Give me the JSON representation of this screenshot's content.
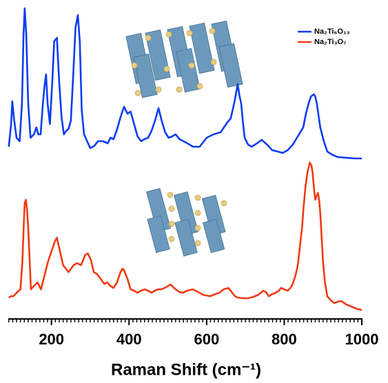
{
  "chart_data": {
    "type": "line",
    "x_label": "Raman Shift (cm⁻¹)",
    "xlim": [
      89,
      1000
    ],
    "ylim": [
      0,
      450
    ],
    "xticks": [
      200,
      400,
      600,
      800,
      1000
    ],
    "xminorticks": [
      90,
      100,
      110,
      120,
      130,
      140,
      150,
      160,
      170,
      180,
      190,
      200,
      210,
      220,
      230,
      240,
      250,
      260,
      270,
      280,
      290,
      300,
      310,
      320,
      330,
      340,
      350,
      360,
      370,
      380,
      390,
      400,
      410,
      420,
      430,
      440,
      450,
      460,
      470,
      480,
      490,
      500,
      510,
      520,
      530,
      540,
      550,
      560,
      570,
      580,
      590,
      600,
      610,
      620,
      630,
      640,
      650,
      660,
      670,
      680,
      690,
      700,
      710,
      720,
      730,
      740,
      750,
      760,
      770,
      780,
      790,
      800,
      810,
      820,
      830,
      840,
      850,
      860,
      870,
      880,
      890,
      900,
      910,
      920,
      930,
      940,
      950,
      960,
      970,
      980,
      990,
      1000
    ],
    "legend": "upper right",
    "series": [
      {
        "name": "Na₂Ti₆O₁₃",
        "color": "#0b3df0",
        "x": [
          90,
          96,
          99,
          104,
          110,
          118,
          124,
          128,
          131,
          135,
          140,
          146,
          155,
          161,
          166,
          172,
          178,
          182,
          186,
          190,
          196,
          202,
          207,
          214,
          220,
          226,
          232,
          238,
          244,
          250,
          256,
          262,
          268,
          273,
          278,
          284,
          292,
          300,
          310,
          320,
          333,
          345,
          352,
          360,
          369,
          378,
          387,
          396,
          404,
          413,
          422,
          431,
          440,
          449,
          458,
          467,
          476,
          484,
          493,
          502,
          511,
          520,
          530,
          547,
          565,
          582,
          600,
          618,
          636,
          653,
          662,
          671,
          676,
          680,
          685,
          689,
          694,
          698,
          707,
          716,
          730,
          742,
          756,
          769,
          783,
          796,
          809,
          822,
          835,
          849,
          856,
          863,
          869,
          876,
          880,
          884,
          889,
          893,
          902,
          911,
          925,
          938,
          960,
          980,
          1000
        ],
        "values": [
          247,
          280,
          313,
          285,
          260,
          255,
          310,
          410,
          448,
          410,
          310,
          260,
          265,
          275,
          265,
          265,
          310,
          335,
          352,
          310,
          280,
          340,
          400,
          405,
          340,
          290,
          265,
          270,
          273,
          285,
          350,
          420,
          438,
          400,
          300,
          265,
          255,
          245,
          248,
          255,
          255,
          252,
          260,
          258,
          272,
          290,
          305,
          295,
          298,
          280,
          262,
          255,
          258,
          260,
          270,
          285,
          303,
          285,
          268,
          260,
          262,
          265,
          258,
          253,
          247,
          247,
          260,
          265,
          268,
          282,
          288,
          310,
          325,
          338,
          320,
          310,
          280,
          260,
          250,
          247,
          252,
          257,
          250,
          242,
          240,
          238,
          242,
          250,
          262,
          275,
          295,
          310,
          320,
          323,
          320,
          310,
          290,
          275,
          255,
          240,
          235,
          232,
          231,
          230,
          230
        ]
      },
      {
        "name": "Na₂Ti₃O₇",
        "color": "#f03a14",
        "x": [
          90,
          96,
          102,
          110,
          120,
          125,
          129,
          131,
          134,
          137,
          140,
          144,
          147,
          155,
          164,
          173,
          182,
          191,
          200,
          209,
          214,
          220,
          230,
          244,
          257,
          266,
          276,
          287,
          294,
          302,
          309,
          318,
          327,
          336,
          344,
          352,
          360,
          369,
          378,
          383,
          387,
          396,
          404,
          413,
          422,
          431,
          440,
          449,
          458,
          466,
          475,
          484,
          495,
          507,
          520,
          530,
          538,
          550,
          564,
          578,
          591,
          600,
          609,
          622,
          633,
          644,
          656,
          666,
          673,
          680,
          693,
          707,
          720,
          733,
          740,
          746,
          753,
          760,
          769,
          778,
          786,
          792,
          800,
          809,
          816,
          822,
          829,
          835,
          840,
          846,
          850,
          855,
          860,
          866,
          870,
          873,
          877,
          880,
          883,
          887,
          890,
          893,
          896,
          900,
          905,
          911,
          920,
          929,
          938,
          947,
          960,
          973,
          986,
          1000
        ],
        "values": [
          28,
          30,
          30,
          35,
          40,
          80,
          140,
          165,
          170,
          155,
          130,
          80,
          40,
          45,
          50,
          40,
          60,
          80,
          95,
          110,
          115,
          100,
          75,
          65,
          75,
          78,
          75,
          90,
          92,
          82,
          65,
          62,
          55,
          48,
          50,
          45,
          42,
          50,
          65,
          70,
          68,
          55,
          40,
          38,
          35,
          38,
          40,
          38,
          35,
          38,
          40,
          40,
          43,
          47,
          40,
          36,
          35,
          38,
          40,
          36,
          32,
          31,
          30,
          33,
          35,
          40,
          42,
          35,
          30,
          28,
          27,
          27,
          29,
          32,
          35,
          38,
          36,
          30,
          33,
          35,
          38,
          42,
          40,
          38,
          42,
          48,
          60,
          75,
          100,
          130,
          160,
          190,
          210,
          224,
          220,
          210,
          185,
          170,
          175,
          180,
          170,
          150,
          120,
          80,
          50,
          30,
          24,
          20,
          22,
          23,
          18,
          15,
          12,
          10
        ]
      }
    ]
  }
}
